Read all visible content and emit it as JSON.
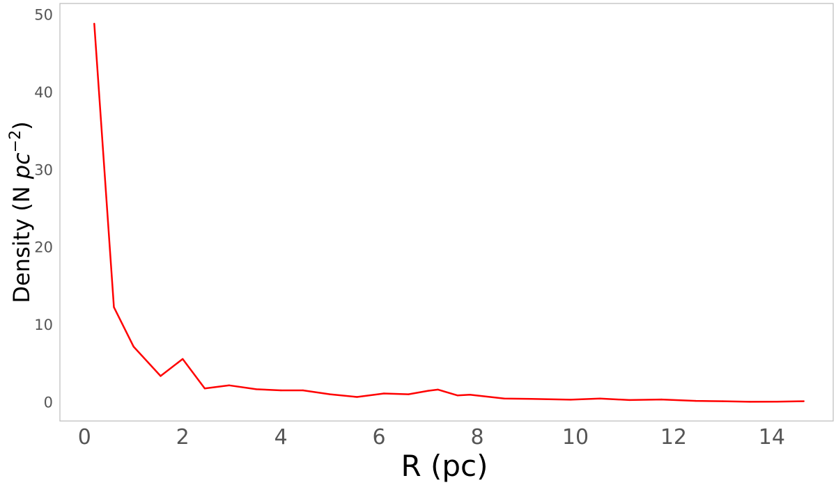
{
  "chart_data": {
    "type": "line",
    "xlabel": "R (pc)",
    "ylabel": {
      "prefix": "Density (N ",
      "unit": "pc",
      "exponent": "−2",
      "suffix": ")"
    },
    "xlim": [
      -0.5,
      15.25
    ],
    "ylim": [
      -2.4,
      51.5
    ],
    "xticks": [
      0,
      2,
      4,
      6,
      8,
      10,
      12,
      14
    ],
    "yticks": [
      0,
      10,
      20,
      30,
      40,
      50
    ],
    "grid": false,
    "series": [
      {
        "color": "#ff0000",
        "x": [
          0.2,
          0.6,
          1.0,
          1.55,
          2.0,
          2.45,
          2.95,
          3.5,
          4.0,
          4.45,
          5.0,
          5.55,
          6.1,
          6.6,
          7.0,
          7.2,
          7.6,
          7.85,
          8.55,
          9.1,
          9.9,
          10.5,
          11.1,
          11.75,
          12.45,
          13.0,
          13.55,
          14.1,
          14.65
        ],
        "y": [
          48.9,
          12.3,
          7.2,
          3.4,
          5.6,
          1.8,
          2.2,
          1.7,
          1.55,
          1.55,
          1.05,
          0.7,
          1.15,
          1.05,
          1.5,
          1.65,
          0.9,
          1.0,
          0.5,
          0.45,
          0.35,
          0.5,
          0.3,
          0.38,
          0.2,
          0.15,
          0.08,
          0.1,
          0.15
        ]
      }
    ]
  }
}
